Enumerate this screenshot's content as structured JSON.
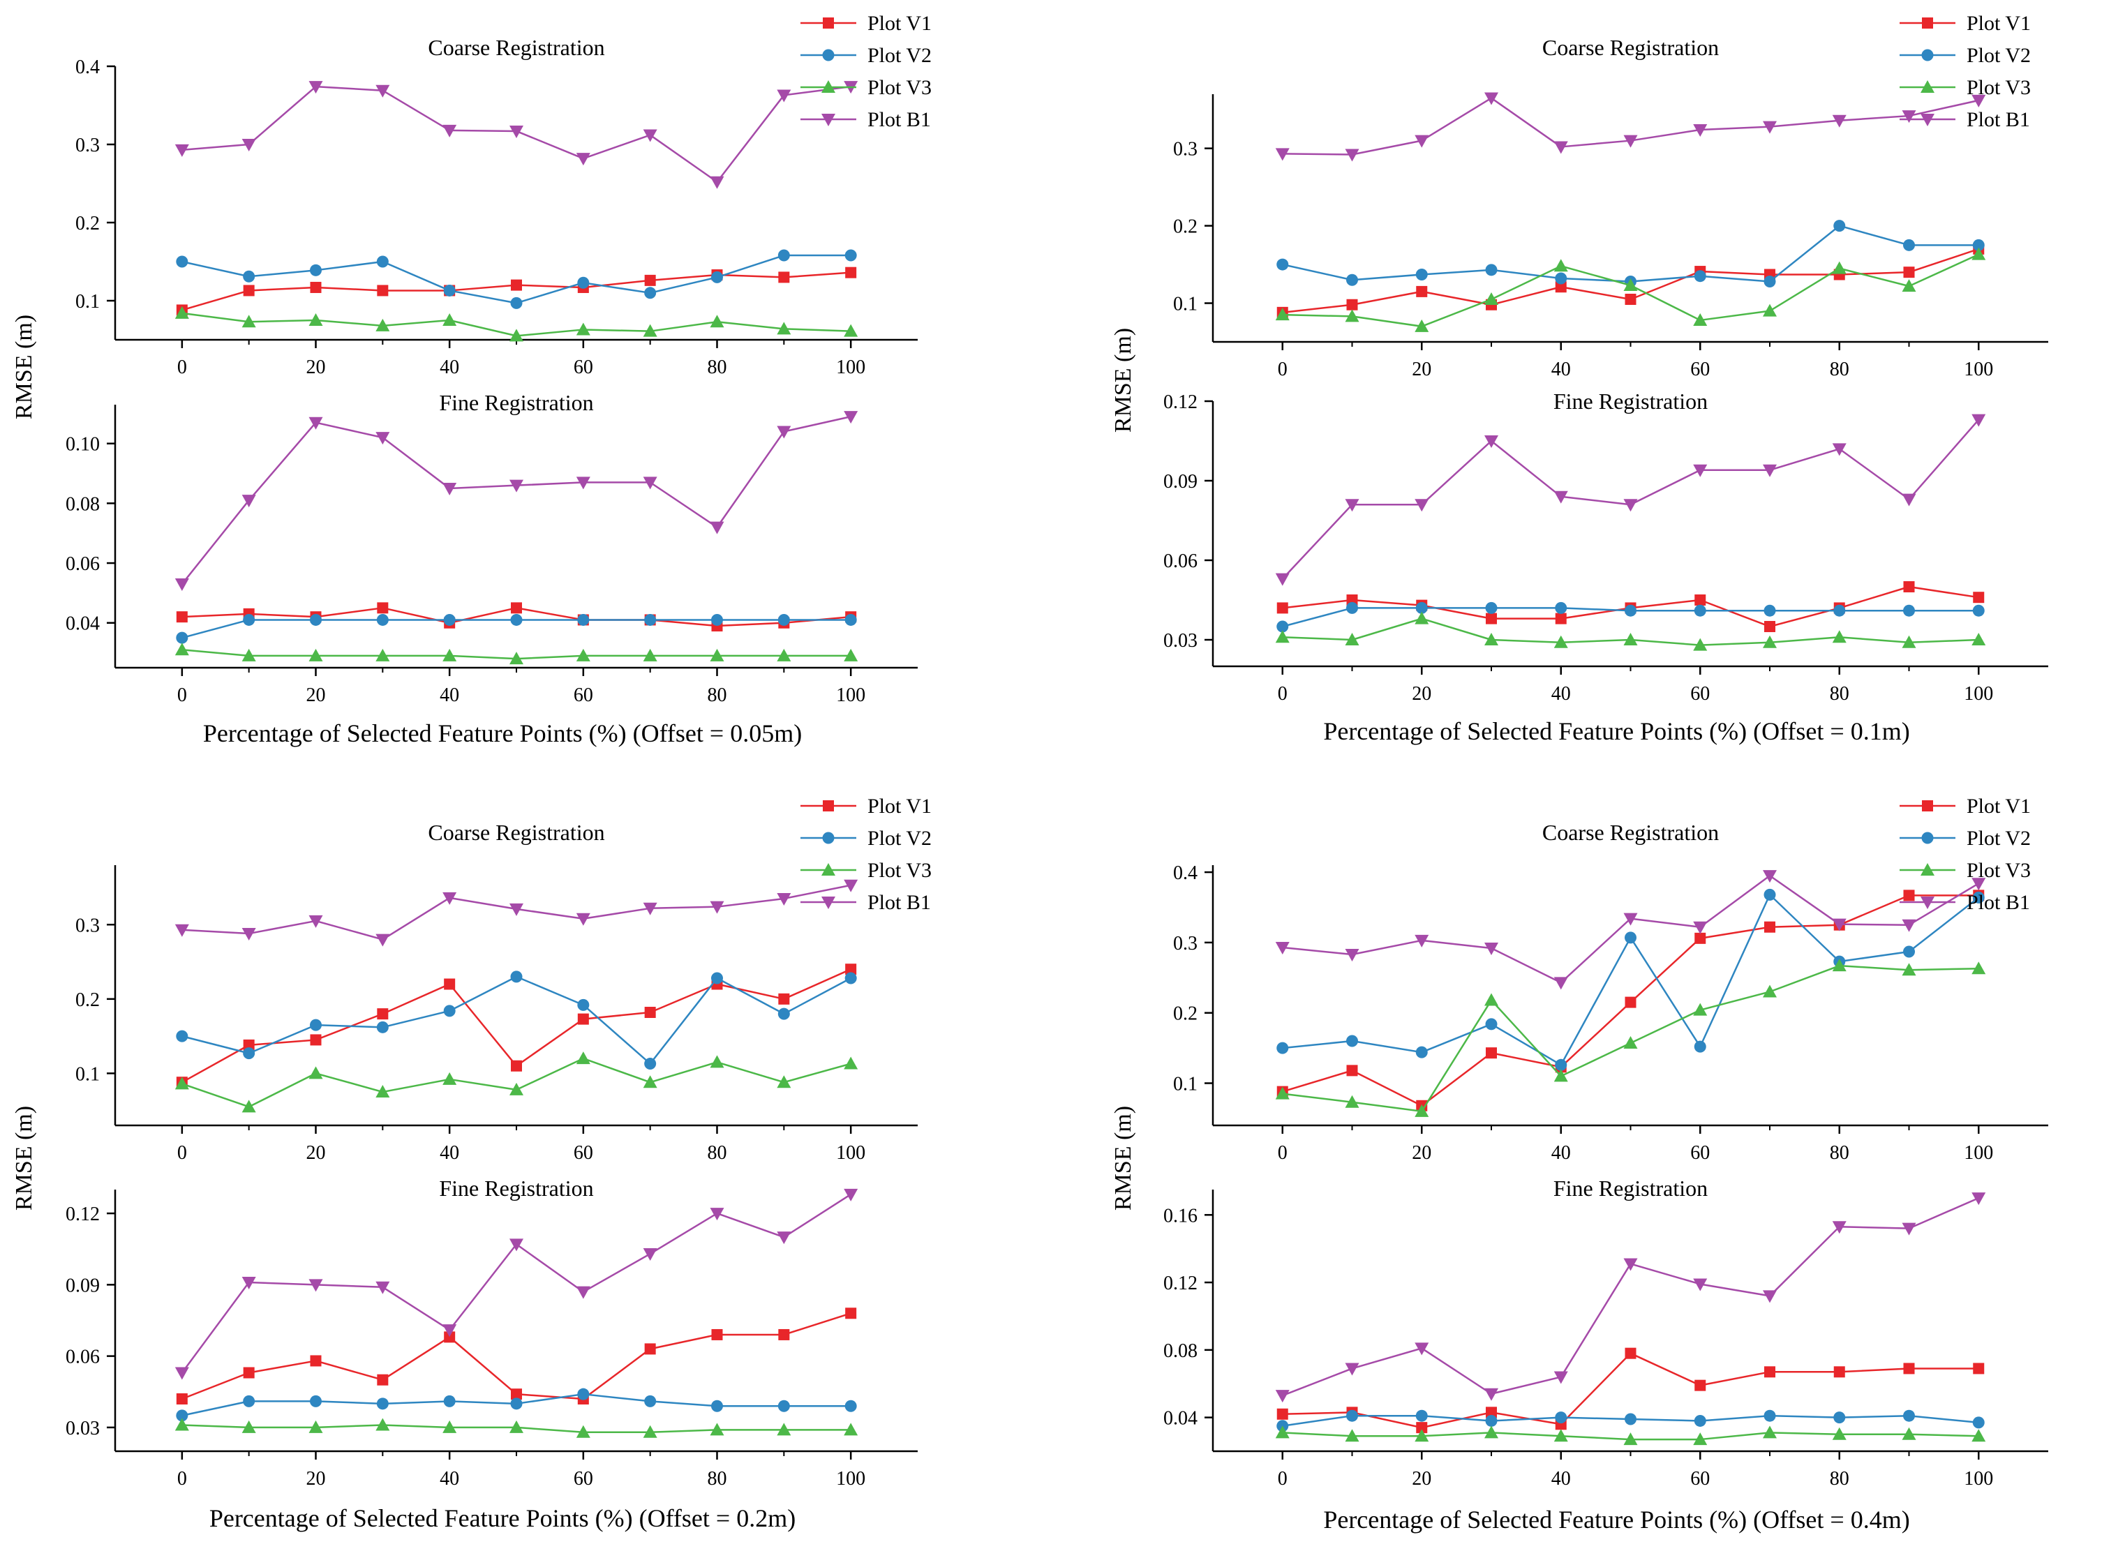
{
  "chart_data": [
    {
      "type": "line",
      "xlabel": "Percentage of Selected Feature Points (%) (Offset = 0.05m)",
      "ylabel": "RMSE (m)",
      "panels": [
        {
          "title": "Coarse Registration",
          "ylim": [
            0.05,
            0.4
          ],
          "yticks": [
            0.1,
            0.2,
            0.3,
            0.4
          ],
          "ytick_labels": [
            "0.1",
            "0.2",
            "0.3",
            "0.4"
          ],
          "legend": "top-right",
          "x": [
            0,
            10,
            20,
            30,
            40,
            50,
            60,
            70,
            80,
            90,
            100
          ],
          "xlim": [
            -10,
            110
          ],
          "xticks": [
            0,
            20,
            40,
            60,
            80,
            100
          ],
          "xtick_labels": [
            "0",
            "20",
            "40",
            "60",
            "80",
            "100"
          ],
          "series": [
            {
              "name": "Plot V1",
              "values": [
                0.088,
                0.113,
                0.117,
                0.113,
                0.113,
                0.12,
                0.117,
                0.126,
                0.133,
                0.13,
                0.136
              ]
            },
            {
              "name": "Plot V2",
              "values": [
                0.15,
                0.131,
                0.139,
                0.15,
                0.113,
                0.097,
                0.123,
                0.11,
                0.13,
                0.158,
                0.158
              ]
            },
            {
              "name": "Plot V3",
              "values": [
                0.084,
                0.073,
                0.075,
                0.068,
                0.075,
                0.055,
                0.063,
                0.061,
                0.073,
                0.064,
                0.061
              ]
            },
            {
              "name": "Plot B1",
              "values": [
                0.293,
                0.3,
                0.374,
                0.369,
                0.318,
                0.317,
                0.282,
                0.312,
                0.252,
                0.363,
                0.374
              ]
            }
          ]
        },
        {
          "title": "Fine Registration",
          "ylim": [
            0.025,
            0.113
          ],
          "yticks": [
            0.04,
            0.06,
            0.08,
            0.1
          ],
          "ytick_labels": [
            "0.04",
            "0.06",
            "0.08",
            "0.10"
          ],
          "legend": "none",
          "x": [
            0,
            10,
            20,
            30,
            40,
            50,
            60,
            70,
            80,
            90,
            100
          ],
          "xlim": [
            -10,
            110
          ],
          "xticks": [
            0,
            20,
            40,
            60,
            80,
            100
          ],
          "xtick_labels": [
            "0",
            "20",
            "40",
            "60",
            "80",
            "100"
          ],
          "series": [
            {
              "name": "Plot V1",
              "values": [
                0.042,
                0.043,
                0.042,
                0.045,
                0.04,
                0.045,
                0.041,
                0.041,
                0.039,
                0.04,
                0.042
              ]
            },
            {
              "name": "Plot V2",
              "values": [
                0.035,
                0.041,
                0.041,
                0.041,
                0.041,
                0.041,
                0.041,
                0.041,
                0.041,
                0.041,
                0.041
              ]
            },
            {
              "name": "Plot V3",
              "values": [
                0.031,
                0.029,
                0.029,
                0.029,
                0.029,
                0.028,
                0.029,
                0.029,
                0.029,
                0.029,
                0.029
              ]
            },
            {
              "name": "Plot B1",
              "values": [
                0.053,
                0.081,
                0.107,
                0.102,
                0.085,
                0.086,
                0.087,
                0.087,
                0.072,
                0.104,
                0.109
              ]
            }
          ]
        }
      ]
    },
    {
      "type": "line",
      "xlabel": "Percentage of Selected Feature Points (%) (Offset = 0.1m)",
      "ylabel": "RMSE (m)",
      "panels": [
        {
          "title": "Coarse Registration",
          "ylim": [
            0.05,
            0.37
          ],
          "yticks": [
            0.1,
            0.2,
            0.3
          ],
          "ytick_labels": [
            "0.1",
            "0.2",
            "0.3"
          ],
          "legend": "top-right",
          "x": [
            0,
            10,
            20,
            30,
            40,
            50,
            60,
            70,
            80,
            90,
            100
          ],
          "xlim": [
            -10,
            110
          ],
          "xticks": [
            0,
            20,
            40,
            60,
            80,
            100
          ],
          "xtick_labels": [
            "0",
            "20",
            "40",
            "60",
            "80",
            "100"
          ],
          "series": [
            {
              "name": "Plot V1",
              "values": [
                0.088,
                0.098,
                0.115,
                0.098,
                0.121,
                0.105,
                0.141,
                0.137,
                0.137,
                0.14,
                0.17
              ]
            },
            {
              "name": "Plot V2",
              "values": [
                0.15,
                0.13,
                0.137,
                0.143,
                0.132,
                0.128,
                0.135,
                0.128,
                0.2,
                0.175,
                0.175
              ]
            },
            {
              "name": "Plot V3",
              "values": [
                0.085,
                0.083,
                0.07,
                0.105,
                0.148,
                0.123,
                0.078,
                0.09,
                0.145,
                0.122,
                0.163
              ]
            },
            {
              "name": "Plot B1",
              "values": [
                0.293,
                0.292,
                0.31,
                0.365,
                0.302,
                0.31,
                0.324,
                0.328,
                0.336,
                0.342,
                0.362
              ]
            }
          ]
        },
        {
          "title": "Fine Registration",
          "ylim": [
            0.02,
            0.12
          ],
          "yticks": [
            0.03,
            0.06,
            0.09,
            0.12
          ],
          "ytick_labels": [
            "0.03",
            "0.06",
            "0.09",
            "0.12"
          ],
          "legend": "none",
          "x": [
            0,
            10,
            20,
            30,
            40,
            50,
            60,
            70,
            80,
            90,
            100
          ],
          "xlim": [
            -10,
            110
          ],
          "xticks": [
            0,
            20,
            40,
            60,
            80,
            100
          ],
          "xtick_labels": [
            "0",
            "20",
            "40",
            "60",
            "80",
            "100"
          ],
          "series": [
            {
              "name": "Plot V1",
              "values": [
                0.042,
                0.045,
                0.043,
                0.038,
                0.038,
                0.042,
                0.045,
                0.035,
                0.042,
                0.05,
                0.046
              ]
            },
            {
              "name": "Plot V2",
              "values": [
                0.035,
                0.042,
                0.042,
                0.042,
                0.042,
                0.041,
                0.041,
                0.041,
                0.041,
                0.041,
                0.041
              ]
            },
            {
              "name": "Plot V3",
              "values": [
                0.031,
                0.03,
                0.038,
                0.03,
                0.029,
                0.03,
                0.028,
                0.029,
                0.031,
                0.029,
                0.03
              ]
            },
            {
              "name": "Plot B1",
              "values": [
                0.053,
                0.081,
                0.081,
                0.105,
                0.084,
                0.081,
                0.094,
                0.094,
                0.102,
                0.083,
                0.113
              ]
            }
          ]
        }
      ]
    },
    {
      "type": "line",
      "xlabel": "Percentage of Selected Feature Points (%) (Offset = 0.2m)",
      "ylabel": "RMSE (m)",
      "panels": [
        {
          "title": "Coarse Registration",
          "ylim": [
            0.03,
            0.38
          ],
          "yticks": [
            0.1,
            0.2,
            0.3
          ],
          "ytick_labels": [
            "0.1",
            "0.2",
            "0.3"
          ],
          "legend": "top-right",
          "x": [
            0,
            10,
            20,
            30,
            40,
            50,
            60,
            70,
            80,
            90,
            100
          ],
          "xlim": [
            -10,
            110
          ],
          "xticks": [
            0,
            20,
            40,
            60,
            80,
            100
          ],
          "xtick_labels": [
            "0",
            "20",
            "40",
            "60",
            "80",
            "100"
          ],
          "series": [
            {
              "name": "Plot V1",
              "values": [
                0.088,
                0.138,
                0.145,
                0.18,
                0.22,
                0.11,
                0.173,
                0.182,
                0.22,
                0.2,
                0.24
              ]
            },
            {
              "name": "Plot V2",
              "values": [
                0.15,
                0.127,
                0.165,
                0.162,
                0.184,
                0.23,
                0.192,
                0.113,
                0.228,
                0.18,
                0.228
              ]
            },
            {
              "name": "Plot V3",
              "values": [
                0.086,
                0.055,
                0.1,
                0.075,
                0.092,
                0.078,
                0.12,
                0.088,
                0.115,
                0.088,
                0.113
              ]
            },
            {
              "name": "Plot B1",
              "values": [
                0.293,
                0.288,
                0.305,
                0.28,
                0.336,
                0.321,
                0.308,
                0.322,
                0.324,
                0.335,
                0.353
              ]
            }
          ]
        },
        {
          "title": "Fine Registration",
          "ylim": [
            0.02,
            0.13
          ],
          "yticks": [
            0.03,
            0.06,
            0.09,
            0.12
          ],
          "ytick_labels": [
            "0.03",
            "0.06",
            "0.09",
            "0.12"
          ],
          "legend": "none",
          "x": [
            0,
            10,
            20,
            30,
            40,
            50,
            60,
            70,
            80,
            90,
            100
          ],
          "xlim": [
            -10,
            110
          ],
          "xticks": [
            0,
            20,
            40,
            60,
            80,
            100
          ],
          "xtick_labels": [
            "0",
            "20",
            "40",
            "60",
            "80",
            "100"
          ],
          "series": [
            {
              "name": "Plot V1",
              "values": [
                0.042,
                0.053,
                0.058,
                0.05,
                0.068,
                0.044,
                0.042,
                0.063,
                0.069,
                0.069,
                0.078
              ]
            },
            {
              "name": "Plot V2",
              "values": [
                0.035,
                0.041,
                0.041,
                0.04,
                0.041,
                0.04,
                0.044,
                0.041,
                0.039,
                0.039,
                0.039
              ]
            },
            {
              "name": "Plot V3",
              "values": [
                0.031,
                0.03,
                0.03,
                0.031,
                0.03,
                0.03,
                0.028,
                0.028,
                0.029,
                0.029,
                0.029
              ]
            },
            {
              "name": "Plot B1",
              "values": [
                0.053,
                0.091,
                0.09,
                0.089,
                0.071,
                0.107,
                0.087,
                0.103,
                0.12,
                0.11,
                0.128
              ]
            }
          ]
        }
      ]
    },
    {
      "type": "line",
      "xlabel": "Percentage of Selected Feature Points (%) (Offset = 0.4m)",
      "ylabel": "RMSE (m)",
      "panels": [
        {
          "title": "Coarse Registration",
          "ylim": [
            0.04,
            0.41
          ],
          "yticks": [
            0.1,
            0.2,
            0.3,
            0.4
          ],
          "ytick_labels": [
            "0.1",
            "0.2",
            "0.3",
            "0.4"
          ],
          "legend": "top-right",
          "x": [
            0,
            10,
            20,
            30,
            40,
            50,
            60,
            70,
            80,
            90,
            100
          ],
          "xlim": [
            -10,
            110
          ],
          "xticks": [
            0,
            20,
            40,
            60,
            80,
            100
          ],
          "xtick_labels": [
            "0",
            "20",
            "40",
            "60",
            "80",
            "100"
          ],
          "series": [
            {
              "name": "Plot V1",
              "values": [
                0.088,
                0.118,
                0.068,
                0.143,
                0.123,
                0.215,
                0.306,
                0.322,
                0.325,
                0.367,
                0.367
              ]
            },
            {
              "name": "Plot V2",
              "values": [
                0.15,
                0.16,
                0.144,
                0.184,
                0.126,
                0.307,
                0.152,
                0.368,
                0.273,
                0.287,
                0.364
              ]
            },
            {
              "name": "Plot V3",
              "values": [
                0.085,
                0.073,
                0.06,
                0.218,
                0.11,
                0.157,
                0.204,
                0.23,
                0.267,
                0.261,
                0.263
              ]
            },
            {
              "name": "Plot B1",
              "values": [
                0.293,
                0.283,
                0.303,
                0.292,
                0.243,
                0.334,
                0.322,
                0.395,
                0.326,
                0.325,
                0.384
              ]
            }
          ]
        },
        {
          "title": "Fine Registration",
          "ylim": [
            0.02,
            0.175
          ],
          "yticks": [
            0.04,
            0.08,
            0.12,
            0.16
          ],
          "ytick_labels": [
            "0.04",
            "0.08",
            "0.12",
            "0.16"
          ],
          "legend": "none",
          "x": [
            0,
            10,
            20,
            30,
            40,
            50,
            60,
            70,
            80,
            90,
            100
          ],
          "xlim": [
            -10,
            110
          ],
          "xticks": [
            0,
            20,
            40,
            60,
            80,
            100
          ],
          "xtick_labels": [
            "0",
            "20",
            "40",
            "60",
            "80",
            "100"
          ],
          "series": [
            {
              "name": "Plot V1",
              "values": [
                0.042,
                0.043,
                0.034,
                0.043,
                0.036,
                0.078,
                0.059,
                0.067,
                0.067,
                0.069,
                0.069
              ]
            },
            {
              "name": "Plot V2",
              "values": [
                0.035,
                0.041,
                0.041,
                0.038,
                0.04,
                0.039,
                0.038,
                0.041,
                0.04,
                0.041,
                0.037
              ]
            },
            {
              "name": "Plot V3",
              "values": [
                0.031,
                0.029,
                0.029,
                0.031,
                0.029,
                0.027,
                0.027,
                0.031,
                0.03,
                0.03,
                0.029
              ]
            },
            {
              "name": "Plot B1",
              "values": [
                0.053,
                0.069,
                0.081,
                0.054,
                0.064,
                0.131,
                0.119,
                0.112,
                0.153,
                0.152,
                0.17
              ]
            }
          ]
        }
      ]
    }
  ],
  "series_style": {
    "Plot V1": {
      "color": "#e8262a",
      "marker": "square"
    },
    "Plot V2": {
      "color": "#2e86c1",
      "marker": "circle"
    },
    "Plot V3": {
      "color": "#4cb848",
      "marker": "triangle-up"
    },
    "Plot B1": {
      "color": "#a54aa8",
      "marker": "triangle-down"
    }
  }
}
